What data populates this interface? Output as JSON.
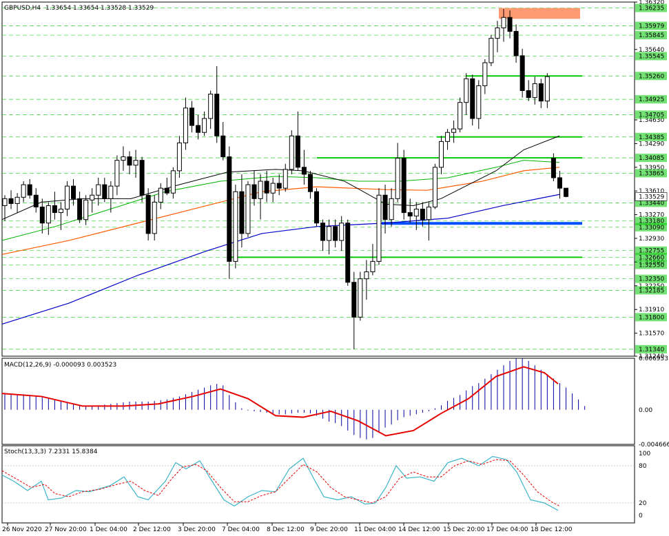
{
  "header": {
    "symbol": "GBPUSD,H4",
    "open": "1.33654",
    "high": "1.33654",
    "low": "1.33528",
    "close": "1.33529"
  },
  "macd_label": "MACD(12,26,9) -0.000093 0.003523",
  "stoch_label": "Stoch(13,3,3) 7.2331 15.8384",
  "price_axis": [
    "1.36320",
    "1.35640",
    "1.34630",
    "1.34290",
    "1.33950",
    "1.33610",
    "1.33270",
    "1.32930",
    "1.32590",
    "1.32250",
    "1.31910",
    "1.31570",
    "1.31240"
  ],
  "level_labels": [
    {
      "text": "1.36235",
      "value": 1.36235
    },
    {
      "text": "1.35979",
      "value": 1.35979
    },
    {
      "text": "1.35845",
      "value": 1.35845
    },
    {
      "text": "1.35545",
      "value": 1.35545
    },
    {
      "text": "1.35260",
      "value": 1.3526
    },
    {
      "text": "1.34925",
      "value": 1.34925
    },
    {
      "text": "1.34705",
      "value": 1.34705
    },
    {
      "text": "1.34385",
      "value": 1.34385
    },
    {
      "text": "1.34085",
      "value": 1.34085
    },
    {
      "text": "1.33865",
      "value": 1.33865
    },
    {
      "text": "1.33440",
      "value": 1.3344
    },
    {
      "text": "1.33180",
      "value": 1.3318
    },
    {
      "text": "1.33090",
      "value": 1.3309
    },
    {
      "text": "1.32755",
      "value": 1.32755
    },
    {
      "text": "1.32660",
      "value": 1.3266
    },
    {
      "text": "1.32550",
      "value": 1.3255
    },
    {
      "text": "1.32350",
      "value": 1.3235
    },
    {
      "text": "1.32185",
      "value": 1.32185
    },
    {
      "text": "1.31800",
      "value": 1.318
    },
    {
      "text": "1.31340",
      "value": 1.3134
    }
  ],
  "current_price": "1.33529",
  "macd_axis": [
    "0.006953",
    "0.00",
    "-0.004666"
  ],
  "stoch_axis": [
    "100",
    "80",
    "20",
    "0"
  ],
  "time_axis": [
    "26 Nov 2020",
    "27 Nov 20:00",
    "1 Dec 04:00",
    "2 Dec 12:00",
    "3 Dec 20:00",
    "7 Dec 04:00",
    "8 Dec 12:00",
    "9 Dec 20:00",
    "11 Dec 04:00",
    "14 Dec 12:00",
    "15 Dec 20:00",
    "17 Dec 04:00",
    "18 Dec 12:00"
  ],
  "colors": {
    "bull": "#ffffff",
    "bear": "#000000",
    "grid": "#00c800",
    "ma_blue": "#0000c8",
    "ma_orange": "#ff5a00",
    "ma_green": "#00b400",
    "ma_black": "#000000",
    "support": "#0050ff",
    "resist_zone": "#ff9b73",
    "level_green": "#00c800",
    "macd_hist": "#0000a0",
    "macd_signal": "#e60000",
    "stoch_main": "#3cb4c8",
    "stoch_signal": "#e60000"
  },
  "chart_data": {
    "type": "candlestick",
    "ylim": [
      1.3124,
      1.3632
    ],
    "candles": [
      [
        1.334,
        1.3355,
        1.3318,
        1.335
      ],
      [
        1.335,
        1.3362,
        1.3335,
        1.3343
      ],
      [
        1.3343,
        1.3358,
        1.333,
        1.3352
      ],
      [
        1.3352,
        1.3375,
        1.3345,
        1.337
      ],
      [
        1.337,
        1.3378,
        1.335,
        1.3355
      ],
      [
        1.3355,
        1.3365,
        1.333,
        1.3338
      ],
      [
        1.3338,
        1.335,
        1.33,
        1.3315
      ],
      [
        1.3315,
        1.3345,
        1.3298,
        1.334
      ],
      [
        1.334,
        1.336,
        1.332,
        1.333
      ],
      [
        1.333,
        1.3345,
        1.3305,
        1.3335
      ],
      [
        1.3335,
        1.3375,
        1.3325,
        1.3368
      ],
      [
        1.3368,
        1.3378,
        1.334,
        1.335
      ],
      [
        1.335,
        1.336,
        1.3315,
        1.332
      ],
      [
        1.332,
        1.3355,
        1.3312,
        1.3348
      ],
      [
        1.3348,
        1.3365,
        1.333,
        1.3355
      ],
      [
        1.3355,
        1.338,
        1.334,
        1.337
      ],
      [
        1.337,
        1.338,
        1.3345,
        1.335
      ],
      [
        1.335,
        1.3375,
        1.333,
        1.3368
      ],
      [
        1.3368,
        1.3412,
        1.3355,
        1.3405
      ],
      [
        1.3405,
        1.3425,
        1.339,
        1.341
      ],
      [
        1.341,
        1.3418,
        1.3385,
        1.3398
      ],
      [
        1.3398,
        1.342,
        1.338,
        1.3405
      ],
      [
        1.3405,
        1.341,
        1.3345,
        1.3355
      ],
      [
        1.3355,
        1.3365,
        1.329,
        1.33
      ],
      [
        1.33,
        1.3355,
        1.329,
        1.3345
      ],
      [
        1.3345,
        1.3372,
        1.3335,
        1.3365
      ],
      [
        1.3365,
        1.338,
        1.3355,
        1.3358
      ],
      [
        1.3358,
        1.3395,
        1.335,
        1.339
      ],
      [
        1.339,
        1.344,
        1.338,
        1.343
      ],
      [
        1.343,
        1.3495,
        1.342,
        1.348
      ],
      [
        1.348,
        1.349,
        1.3445,
        1.3455
      ],
      [
        1.3455,
        1.347,
        1.3435,
        1.3445
      ],
      [
        1.3445,
        1.3475,
        1.344,
        1.3465
      ],
      [
        1.3465,
        1.3505,
        1.345,
        1.35
      ],
      [
        1.35,
        1.354,
        1.343,
        1.344
      ],
      [
        1.344,
        1.346,
        1.3405,
        1.341
      ],
      [
        1.341,
        1.3425,
        1.3235,
        1.326
      ],
      [
        1.326,
        1.337,
        1.325,
        1.336
      ],
      [
        1.336,
        1.3385,
        1.328,
        1.33
      ],
      [
        1.33,
        1.3375,
        1.3295,
        1.337
      ],
      [
        1.337,
        1.339,
        1.334,
        1.335
      ],
      [
        1.335,
        1.3385,
        1.332,
        1.3375
      ],
      [
        1.3375,
        1.339,
        1.3345,
        1.3358
      ],
      [
        1.3358,
        1.338,
        1.3345,
        1.3372
      ],
      [
        1.3372,
        1.3385,
        1.3355,
        1.3365
      ],
      [
        1.3365,
        1.34,
        1.336,
        1.3392
      ],
      [
        1.3392,
        1.3448,
        1.3385,
        1.344
      ],
      [
        1.344,
        1.3475,
        1.339,
        1.3395
      ],
      [
        1.3395,
        1.342,
        1.337,
        1.3385
      ],
      [
        1.3385,
        1.339,
        1.335,
        1.336
      ],
      [
        1.336,
        1.3365,
        1.331,
        1.3315
      ],
      [
        1.3315,
        1.332,
        1.3275,
        1.329
      ],
      [
        1.329,
        1.332,
        1.327,
        1.331
      ],
      [
        1.331,
        1.332,
        1.328,
        1.329
      ],
      [
        1.329,
        1.3325,
        1.3275,
        1.3315
      ],
      [
        1.3315,
        1.332,
        1.3225,
        1.323
      ],
      [
        1.323,
        1.3245,
        1.3134,
        1.318
      ],
      [
        1.318,
        1.3245,
        1.3175,
        1.3235
      ],
      [
        1.3235,
        1.3262,
        1.3205,
        1.3245
      ],
      [
        1.3245,
        1.3285,
        1.324,
        1.326
      ],
      [
        1.326,
        1.3365,
        1.3255,
        1.3355
      ],
      [
        1.3355,
        1.337,
        1.33,
        1.332
      ],
      [
        1.332,
        1.3365,
        1.331,
        1.335
      ],
      [
        1.335,
        1.343,
        1.3345,
        1.3408
      ],
      [
        1.3408,
        1.342,
        1.332,
        1.333
      ],
      [
        1.333,
        1.335,
        1.3315,
        1.3325
      ],
      [
        1.3325,
        1.3345,
        1.3305,
        1.3335
      ],
      [
        1.3335,
        1.3345,
        1.331,
        1.332
      ],
      [
        1.332,
        1.3345,
        1.329,
        1.3338
      ],
      [
        1.3338,
        1.34,
        1.3335,
        1.3395
      ],
      [
        1.3395,
        1.344,
        1.3385,
        1.3432
      ],
      [
        1.3432,
        1.345,
        1.342,
        1.3445
      ],
      [
        1.3445,
        1.3462,
        1.343,
        1.345
      ],
      [
        1.345,
        1.3495,
        1.3445,
        1.3488
      ],
      [
        1.3488,
        1.353,
        1.347,
        1.3522
      ],
      [
        1.3522,
        1.3528,
        1.3455,
        1.3465
      ],
      [
        1.3465,
        1.352,
        1.345,
        1.3512
      ],
      [
        1.3512,
        1.355,
        1.35,
        1.3545
      ],
      [
        1.3545,
        1.3585,
        1.354,
        1.358
      ],
      [
        1.358,
        1.3605,
        1.356,
        1.3595
      ],
      [
        1.3595,
        1.3622,
        1.3575,
        1.361
      ],
      [
        1.361,
        1.362,
        1.358,
        1.359
      ],
      [
        1.359,
        1.36,
        1.3545,
        1.3555
      ],
      [
        1.3555,
        1.3565,
        1.3495,
        1.3505
      ],
      [
        1.3505,
        1.352,
        1.349,
        1.3495
      ],
      [
        1.3495,
        1.3525,
        1.3485,
        1.3515
      ],
      [
        1.3515,
        1.3522,
        1.348,
        1.349
      ],
      [
        1.349,
        1.353,
        1.348,
        1.3525
      ],
      [
        1.3408,
        1.3415,
        1.3375,
        1.338
      ],
      [
        1.338,
        1.339,
        1.335,
        1.3365
      ],
      [
        1.3365,
        1.3365,
        1.3352,
        1.3353
      ]
    ]
  }
}
